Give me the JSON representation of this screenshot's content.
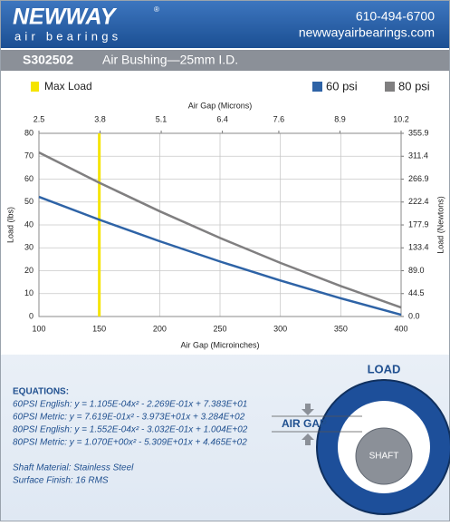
{
  "header": {
    "brand": "NEWWAY",
    "registered": "®",
    "tagline": "air bearings",
    "phone": "610-494-6700",
    "website": "newwayairbearings.com"
  },
  "product": {
    "code": "S302502",
    "name": "Air Bushing—25mm I.D."
  },
  "chart_data": {
    "type": "line",
    "x": [
      100,
      150,
      200,
      250,
      300,
      350,
      400
    ],
    "xlim": [
      100,
      400
    ],
    "xticks": [
      100,
      150,
      200,
      250,
      300,
      350,
      400
    ],
    "x_label": "Air Gap (Microinches)",
    "x2lim": [
      2.5,
      10.2
    ],
    "x2ticks": [
      2.5,
      3.8,
      5.1,
      6.4,
      7.6,
      8.9,
      10.2
    ],
    "x2_label": "Air Gap (Microns)",
    "ylim": [
      0,
      80
    ],
    "yticks": [
      0,
      10,
      20,
      30,
      40,
      50,
      60,
      70,
      80
    ],
    "y_label": "Load (lbs)",
    "y2lim": [
      0,
      355.9
    ],
    "y2ticks": [
      {
        "value": 0,
        "label": "0.0"
      },
      44.5,
      {
        "value": 89,
        "label": "89.0"
      },
      133.4,
      177.9,
      222.4,
      266.9,
      311.4,
      355.9
    ],
    "y2_label": "Load (Newtons)",
    "grid": true,
    "max_load": {
      "name": "Max Load",
      "x": 150,
      "color": "#f5e400"
    },
    "series": [
      {
        "name": "60 psi",
        "color": "#2e63a6",
        "values": [
          52.25,
          42.28,
          32.87,
          24.01,
          15.71,
          7.95,
          0.75
        ]
      },
      {
        "name": "80 psi",
        "color": "#807f80",
        "values": [
          71.63,
          58.41,
          45.97,
          34.3,
          23.41,
          13.29,
          3.95
        ]
      }
    ]
  },
  "equations": {
    "title": "EQUATIONS:",
    "lines": [
      "60PSI English:  y = 1.105E-04x² - 2.269E-01x + 7.383E+01",
      "60PSI Metric:  y = 7.619E-01x² - 3.973E+01x + 3.284E+02",
      "80PSI English:  y = 1.552E-04x² - 3.032E-01x + 1.004E+02",
      "80PSI Metric:  y = 1.070E+00x² - 5.309E+01x + 4.465E+02"
    ]
  },
  "specs": [
    "Shaft Material:  Stainless Steel",
    "Surface Finish:  16 RMS"
  ],
  "diagram": {
    "load": "LOAD",
    "air_gap": "AIR GAP",
    "shaft": "SHAFT"
  }
}
